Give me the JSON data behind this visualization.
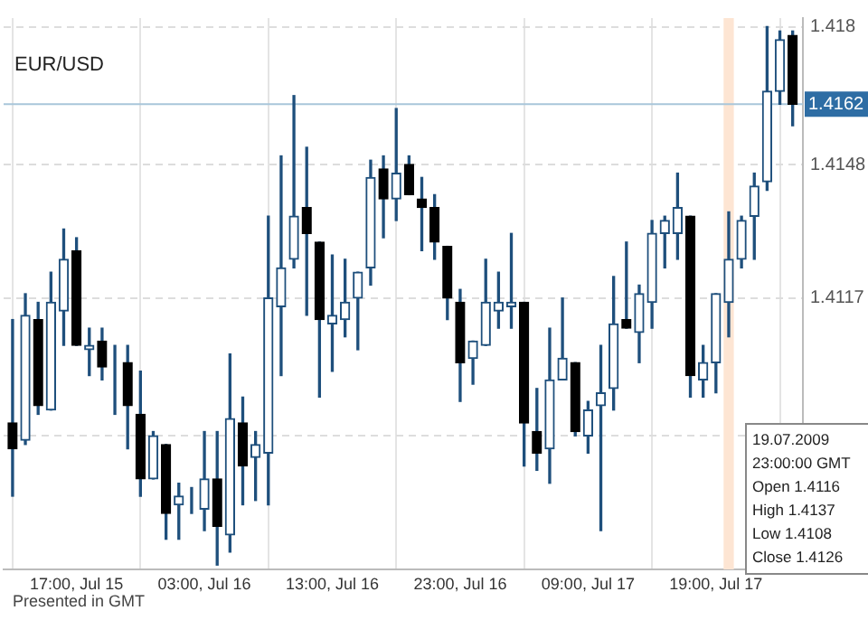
{
  "chart_data": {
    "type": "candlestick",
    "title": "EUR/USD",
    "color": "#1e4f7c",
    "x": [
      "--07-15T12:00",
      "--07-15T13:00",
      "--07-15T14:00",
      "--07-15T15:00",
      "--07-15T16:00",
      "--07-15T17:00",
      "--07-15T18:00",
      "--07-15T19:00",
      "--07-15T20:00",
      "--07-15T21:00",
      "--07-15T22:00",
      "--07-15T23:00",
      "--07-16T00:00",
      "--07-16T01:00",
      "--07-16T02:00",
      "--07-16T03:00",
      "--07-16T04:00",
      "--07-16T05:00",
      "--07-16T06:00",
      "--07-16T07:00",
      "--07-16T08:00",
      "--07-16T09:00",
      "--07-16T10:00",
      "--07-16T11:00",
      "--07-16T12:00",
      "--07-16T13:00",
      "--07-16T14:00",
      "--07-16T15:00",
      "--07-16T16:00",
      "--07-16T17:00",
      "--07-16T18:00",
      "--07-16T19:00",
      "--07-16T20:00",
      "--07-16T21:00",
      "--07-16T22:00",
      "--07-16T23:00",
      "--07-17T00:00",
      "--07-17T01:00",
      "--07-17T02:00",
      "--07-17T03:00",
      "--07-17T04:00",
      "--07-17T05:00",
      "--07-17T06:00",
      "--07-17T07:00",
      "--07-17T08:00",
      "--07-17T09:00",
      "--07-17T10:00",
      "--07-17T11:00",
      "--07-17T12:00",
      "--07-17T13:00",
      "--07-17T14:00",
      "--07-17T15:00",
      "--07-17T16:00",
      "--07-17T17:00",
      "--07-17T18:00",
      "--07-17T19:00",
      "--07-17T20:00",
      "--07-17T21:00",
      "--07-17T22:00",
      "--07-17T23:00",
      "--07-18T00:00",
      "--07-18T01:00"
    ],
    "ohlc": [
      [
        1.4088,
        1.4112,
        1.4071,
        1.4082
      ],
      [
        1.4084,
        1.4118,
        1.4083,
        1.4113
      ],
      [
        1.4112,
        1.4116,
        1.409,
        1.4092
      ],
      [
        1.4091,
        1.4123,
        1.4091,
        1.4116
      ],
      [
        1.4114,
        1.4133,
        1.4106,
        1.4126
      ],
      [
        1.4128,
        1.4131,
        1.4106,
        1.4106
      ],
      [
        1.4105,
        1.411,
        1.4099,
        1.4106
      ],
      [
        1.4107,
        1.411,
        1.4098,
        1.4101
      ],
      [
        1.4101,
        1.4106,
        1.409,
        1.4101
      ],
      [
        1.4102,
        1.4106,
        1.4082,
        1.4092
      ],
      [
        1.409,
        1.41,
        1.4071,
        1.4075
      ],
      [
        1.4075,
        1.4086,
        1.4075,
        1.4085
      ],
      [
        1.4083,
        1.4083,
        1.4061,
        1.4067
      ],
      [
        1.4069,
        1.4074,
        1.4061,
        1.4071
      ],
      [
        1.407,
        1.4073,
        1.4067,
        1.407
      ],
      [
        1.4068,
        1.4086,
        1.4063,
        1.4075
      ],
      [
        1.4075,
        1.4086,
        1.4055,
        1.4064
      ],
      [
        1.4062,
        1.4104,
        1.4058,
        1.4089
      ],
      [
        1.4088,
        1.4094,
        1.4069,
        1.4078
      ],
      [
        1.408,
        1.4086,
        1.407,
        1.4083
      ],
      [
        1.4081,
        1.4136,
        1.4069,
        1.4117
      ],
      [
        1.4115,
        1.415,
        1.4099,
        1.4124
      ],
      [
        1.4126,
        1.4164,
        1.4124,
        1.4136
      ],
      [
        1.4138,
        1.4152,
        1.4113,
        1.4132
      ],
      [
        1.413,
        1.413,
        1.4094,
        1.4112
      ],
      [
        1.4111,
        1.4127,
        1.41,
        1.4113
      ],
      [
        1.4112,
        1.4126,
        1.4108,
        1.4116
      ],
      [
        1.4117,
        1.4123,
        1.4105,
        1.4123
      ],
      [
        1.4124,
        1.4149,
        1.412,
        1.4145
      ],
      [
        1.4147,
        1.415,
        1.4131,
        1.414
      ],
      [
        1.414,
        1.4161,
        1.4135,
        1.4146
      ],
      [
        1.4148,
        1.415,
        1.4141,
        1.4141
      ],
      [
        1.414,
        1.4145,
        1.4128,
        1.4138
      ],
      [
        1.4138,
        1.4141,
        1.4126,
        1.413
      ],
      [
        1.4129,
        1.4129,
        1.4112,
        1.4117
      ],
      [
        1.4116,
        1.4119,
        1.4093,
        1.4102
      ],
      [
        1.4103,
        1.4107,
        1.4097,
        1.4107
      ],
      [
        1.4106,
        1.4126,
        1.4106,
        1.4116
      ],
      [
        1.4114,
        1.4123,
        1.411,
        1.4116
      ],
      [
        1.4115,
        1.4132,
        1.411,
        1.4116
      ],
      [
        1.4116,
        1.4116,
        1.4078,
        1.4088
      ],
      [
        1.4086,
        1.4096,
        1.4077,
        1.4081
      ],
      [
        1.4082,
        1.411,
        1.4074,
        1.4098
      ],
      [
        1.4098,
        1.4117,
        1.4098,
        1.4103
      ],
      [
        1.4102,
        1.4102,
        1.4085,
        1.4086
      ],
      [
        1.4085,
        1.4093,
        1.4081,
        1.4091
      ],
      [
        1.4092,
        1.4106,
        1.4063,
        1.4095
      ],
      [
        1.4096,
        1.4122,
        1.4091,
        1.4111
      ],
      [
        1.4112,
        1.413,
        1.411,
        1.411
      ],
      [
        1.4109,
        1.412,
        1.4102,
        1.4118
      ],
      [
        1.4116,
        1.4135,
        1.411,
        1.4132
      ],
      [
        1.4132,
        1.4136,
        1.4124,
        1.4135
      ],
      [
        1.4132,
        1.4146,
        1.4126,
        1.4138
      ],
      [
        1.4136,
        1.4136,
        1.4094,
        1.4099
      ],
      [
        1.4098,
        1.4106,
        1.4094,
        1.4102
      ],
      [
        1.4102,
        1.4118,
        1.4095,
        1.4118
      ],
      [
        1.4116,
        1.4137,
        1.4108,
        1.4126
      ],
      [
        1.4126,
        1.4136,
        1.4124,
        1.4135
      ],
      [
        1.4136,
        1.4146,
        1.4126,
        1.4143
      ],
      [
        1.4144,
        1.418,
        1.4142,
        1.4165
      ],
      [
        1.4165,
        1.4179,
        1.4162,
        1.4177
      ],
      [
        1.4178,
        1.4179,
        1.4157,
        1.4162
      ]
    ],
    "colors": [
      "#000000",
      "#1e4f7c",
      "#000000",
      "#1e4f7c",
      "#1e4f7c",
      "#000000",
      "#1e4f7c",
      "#000000",
      "#1e4f7c",
      "#000000",
      "#000000",
      "#1e4f7c",
      "#000000",
      "#1e4f7c",
      "#1e4f7c",
      "#1e4f7c",
      "#000000",
      "#1e4f7c",
      "#000000",
      "#1e4f7c",
      "#1e4f7c",
      "#1e4f7c",
      "#1e4f7c",
      "#000000",
      "#000000",
      "#1e4f7c",
      "#1e4f7c",
      "#1e4f7c",
      "#1e4f7c",
      "#000000",
      "#1e4f7c",
      "#000000",
      "#000000",
      "#000000",
      "#000000",
      "#000000",
      "#1e4f7c",
      "#1e4f7c",
      "#1e4f7c",
      "#1e4f7c",
      "#000000",
      "#000000",
      "#1e4f7c",
      "#1e4f7c",
      "#000000",
      "#1e4f7c",
      "#1e4f7c",
      "#1e4f7c",
      "#000000",
      "#1e4f7c",
      "#1e4f7c",
      "#1e4f7c",
      "#1e4f7c",
      "#000000",
      "#1e4f7c",
      "#1e4f7c",
      "#1e4f7c",
      "#1e4f7c",
      "#1e4f7c",
      "#1e4f7c",
      "#1e4f7c",
      "#000000"
    ],
    "xlim": [
      "--07-15T11:18",
      "--07-18T01:48"
    ],
    "xticks": [
      {
        "value": "--07-15T17:00",
        "label": "17:00, Jul 15"
      },
      {
        "value": "--07-16T03:00",
        "label": "03:00, Jul 16"
      },
      {
        "value": "--07-16T13:00",
        "label": "13:00, Jul 16"
      },
      {
        "value": "--07-16T23:00",
        "label": "23:00, Jul 16"
      },
      {
        "value": "--07-17T09:00",
        "label": "09:00, Jul 17"
      },
      {
        "value": "--07-17T19:00",
        "label": "19:00, Jul 17"
      }
    ],
    "ylim": [
      1.4054,
      1.4182
    ],
    "yticks": [
      {
        "value": 1.4085,
        "label": null
      },
      1.4117,
      1.4148,
      1.418
    ],
    "grid": true,
    "ref_lines": [
      {
        "axis": "y",
        "value": 1.4162,
        "label": "1.4162",
        "color": "#a9c6da"
      }
    ],
    "bands": [
      {
        "axis": "x",
        "from": "--07-17T19:36",
        "to": "--07-17T20:24",
        "color": "#fde5d3"
      }
    ],
    "annotations": [
      "19.07.2009",
      "23:00:00 GMT",
      "Open 1.4116",
      "High 1.4137",
      "Low 1.4108",
      "Close 1.4126",
      "Presented in GMT"
    ]
  }
}
